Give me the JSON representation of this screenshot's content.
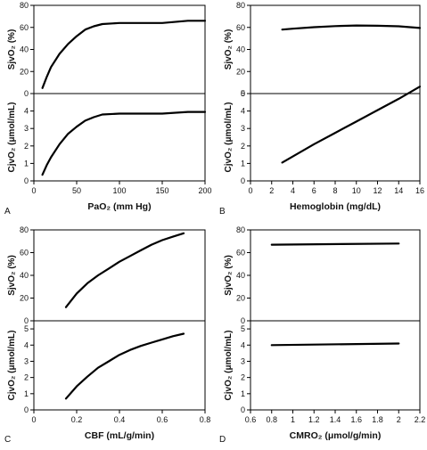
{
  "chart_data": [
    {
      "type": "line",
      "panel_label": "A",
      "xlabel": "PaO₂ (mm Hg)",
      "xlim": [
        0,
        200
      ],
      "xticks": [
        0,
        50,
        100,
        150,
        200
      ],
      "top": {
        "ylabel": "SjvO₂ (%)",
        "ylim": [
          0,
          80
        ],
        "yticks": [
          0,
          20,
          40,
          60,
          80
        ],
        "x": [
          10,
          15,
          20,
          30,
          40,
          50,
          60,
          70,
          80,
          100,
          120,
          150,
          180,
          200
        ],
        "values": [
          5,
          15,
          24,
          36,
          45,
          52,
          58,
          61,
          63,
          64,
          64,
          64,
          66,
          66
        ]
      },
      "bottom": {
        "ylabel": "CjvO₂ (μmol/mL)",
        "ylim": [
          0,
          5
        ],
        "yticks": [
          0,
          1,
          2,
          3,
          4
        ],
        "x": [
          10,
          15,
          20,
          30,
          40,
          50,
          60,
          70,
          80,
          100,
          120,
          150,
          180,
          200
        ],
        "values": [
          0.35,
          0.9,
          1.35,
          2.1,
          2.7,
          3.1,
          3.45,
          3.65,
          3.8,
          3.85,
          3.85,
          3.85,
          3.95,
          3.95
        ]
      }
    },
    {
      "type": "line",
      "panel_label": "B",
      "xlabel": "Hemoglobin (mg/dL)",
      "xlim": [
        0,
        16
      ],
      "xticks": [
        0,
        2,
        4,
        6,
        8,
        10,
        12,
        14,
        16
      ],
      "top": {
        "ylabel": "SjvO₂ (%)",
        "ylim": [
          0,
          80
        ],
        "yticks": [
          0,
          20,
          40,
          60,
          80
        ],
        "x": [
          3,
          4,
          6,
          8,
          10,
          12,
          14,
          16
        ],
        "values": [
          58,
          58.8,
          60.2,
          61.2,
          61.7,
          61.5,
          61,
          59.5
        ]
      },
      "bottom": {
        "ylabel": "CjvO₂ (μmol/mL)",
        "ylim": [
          0,
          5
        ],
        "yticks": [
          0,
          1,
          2,
          3,
          4,
          5
        ],
        "x": [
          3,
          4,
          6,
          8,
          10,
          12,
          14,
          16
        ],
        "values": [
          1.05,
          1.4,
          2.1,
          2.75,
          3.4,
          4.05,
          4.7,
          5.4
        ]
      }
    },
    {
      "type": "line",
      "panel_label": "C",
      "xlabel": "CBF (mL/g/min)",
      "xlim": [
        0,
        0.8
      ],
      "xticks": [
        0,
        0.2,
        0.4,
        0.6,
        0.8
      ],
      "top": {
        "ylabel": "SjvO₂ (%)",
        "ylim": [
          0,
          80
        ],
        "yticks": [
          0,
          20,
          40,
          60,
          80
        ],
        "x": [
          0.15,
          0.2,
          0.25,
          0.3,
          0.35,
          0.4,
          0.45,
          0.5,
          0.55,
          0.6,
          0.65,
          0.7
        ],
        "values": [
          12,
          24,
          33,
          40,
          46,
          52,
          57,
          62,
          67,
          71,
          74,
          77
        ]
      },
      "bottom": {
        "ylabel": "CjvO₂ (μmol/mL)",
        "ylim": [
          0,
          5.5
        ],
        "yticks": [
          0,
          1,
          2,
          3,
          4,
          5
        ],
        "x": [
          0.15,
          0.2,
          0.25,
          0.3,
          0.35,
          0.4,
          0.45,
          0.5,
          0.55,
          0.6,
          0.65,
          0.7
        ],
        "values": [
          0.7,
          1.45,
          2.05,
          2.6,
          3.0,
          3.4,
          3.7,
          3.95,
          4.15,
          4.35,
          4.55,
          4.7
        ]
      }
    },
    {
      "type": "line",
      "panel_label": "D",
      "xlabel": "CMRO₂ (μmol/g/min)",
      "xlim": [
        0.6,
        2.2
      ],
      "xticks": [
        0.6,
        0.8,
        1.0,
        1.2,
        1.4,
        1.6,
        1.8,
        2.0,
        2.2
      ],
      "top": {
        "ylabel": "SjvO₂ (%)",
        "ylim": [
          0,
          80
        ],
        "yticks": [
          0,
          20,
          40,
          60,
          80
        ],
        "x": [
          0.8,
          2.0
        ],
        "values": [
          67,
          68
        ]
      },
      "bottom": {
        "ylabel": "CjvO₂ (μmol/mL)",
        "ylim": [
          0,
          5.5
        ],
        "yticks": [
          0,
          1,
          2,
          3,
          4,
          5
        ],
        "x": [
          0.8,
          2.0
        ],
        "values": [
          4.0,
          4.1
        ]
      }
    }
  ]
}
